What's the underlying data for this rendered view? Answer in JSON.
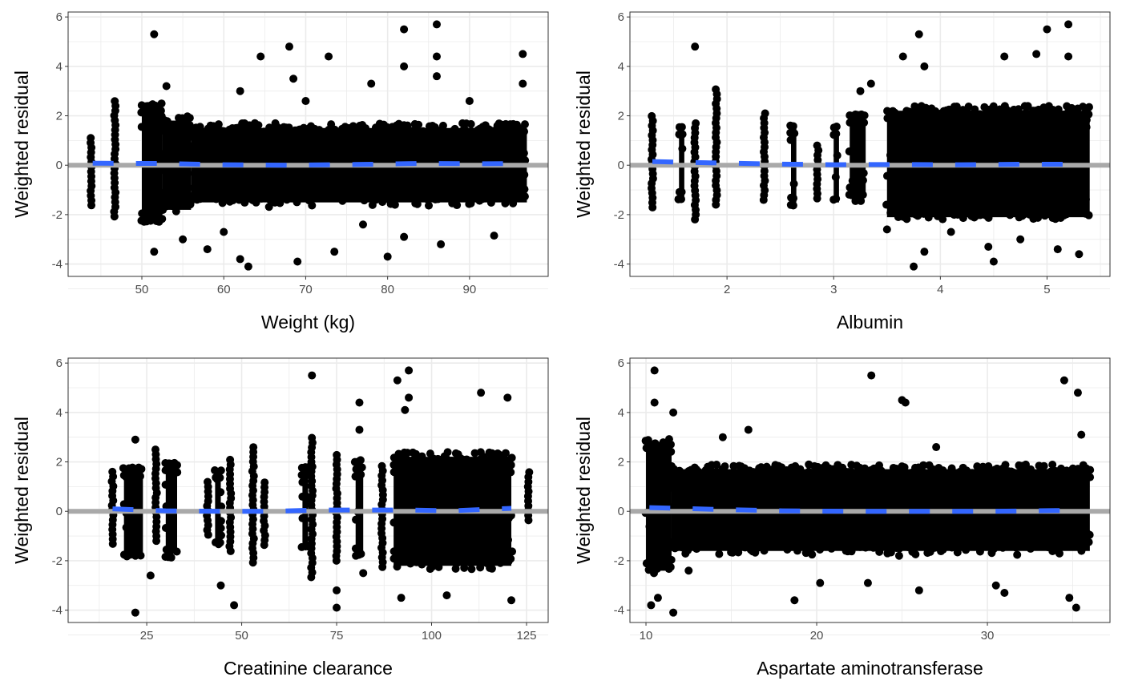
{
  "colors": {
    "points": "#000000",
    "smooth": "#3366FF",
    "reference_line": "#A9A9A9",
    "grid": "#EBEBEB",
    "border": "#333333",
    "tick_text": "#4D4D4D"
  },
  "chart_data": [
    {
      "type": "scatter",
      "xlabel": "Weight (kg)",
      "ylabel": "Weighted residual",
      "xlim": [
        41.0,
        99.6
      ],
      "ylim": [
        -4.5,
        6.2
      ],
      "xticks": [
        50,
        60,
        70,
        80,
        90
      ],
      "yticks": [
        -4,
        -2,
        0,
        2,
        4,
        6
      ],
      "grid": true,
      "reference_y": 0,
      "point_columns": [
        {
          "x": [
            43.8,
            43.8
          ],
          "y": [
            -1.9,
            1.1
          ]
        },
        {
          "x": [
            46.7,
            46.7
          ],
          "y": [
            -2.2,
            2.6
          ]
        },
        {
          "x": [
            50.0,
            52.5
          ],
          "y": [
            -2.4,
            2.5
          ]
        },
        {
          "x": [
            52.5,
            56.0
          ],
          "y": [
            -2.0,
            2.0
          ]
        },
        {
          "x": [
            56.0,
            97.0
          ],
          "y": [
            -1.7,
            1.7
          ]
        }
      ],
      "points": [
        [
          51.5,
          5.3
        ],
        [
          51.5,
          -3.5
        ],
        [
          58,
          -3.4
        ],
        [
          62,
          -3.8
        ],
        [
          63,
          -4.1
        ],
        [
          64.5,
          4.4
        ],
        [
          68,
          4.8
        ],
        [
          68.5,
          3.5
        ],
        [
          69,
          -3.9
        ],
        [
          72.8,
          4.4
        ],
        [
          73.5,
          -3.5
        ],
        [
          80,
          -3.7
        ],
        [
          82,
          5.5
        ],
        [
          82,
          4.0
        ],
        [
          82,
          -2.9
        ],
        [
          86,
          5.7
        ],
        [
          86,
          4.4
        ],
        [
          86,
          3.6
        ],
        [
          86.5,
          -3.2
        ],
        [
          93,
          -2.85
        ],
        [
          96.5,
          4.5
        ],
        [
          96.5,
          3.3
        ],
        [
          62,
          3.0
        ],
        [
          55,
          -3.0
        ],
        [
          70,
          2.6
        ],
        [
          78,
          3.3
        ],
        [
          90,
          2.6
        ],
        [
          53,
          3.2
        ],
        [
          60,
          -2.7
        ],
        [
          77,
          -2.4
        ]
      ],
      "smooth": [
        [
          44,
          0.08
        ],
        [
          52,
          0.07
        ],
        [
          60,
          0.02
        ],
        [
          68,
          0.0
        ],
        [
          76,
          0.03
        ],
        [
          84,
          0.07
        ],
        [
          92,
          0.06
        ],
        [
          96,
          0.07
        ]
      ]
    },
    {
      "type": "scatter",
      "xlabel": "Albumin",
      "ylabel": "Weighted residual",
      "xlim": [
        1.09,
        5.59
      ],
      "ylim": [
        -4.5,
        6.2
      ],
      "xticks": [
        2,
        3,
        4,
        5
      ],
      "yticks": [
        -4,
        -2,
        0,
        2,
        4,
        6
      ],
      "grid": true,
      "reference_y": 0,
      "point_columns": [
        {
          "x": [
            1.3,
            1.3
          ],
          "y": [
            -1.9,
            2.1
          ]
        },
        {
          "x": [
            1.55,
            1.6
          ],
          "y": [
            -1.5,
            1.6
          ]
        },
        {
          "x": [
            1.7,
            1.7
          ],
          "y": [
            -2.5,
            1.8
          ]
        },
        {
          "x": [
            1.9,
            1.9
          ],
          "y": [
            -1.8,
            3.2
          ]
        },
        {
          "x": [
            2.35,
            2.35
          ],
          "y": [
            -1.6,
            2.1
          ]
        },
        {
          "x": [
            2.6,
            2.65
          ],
          "y": [
            -1.7,
            1.7
          ]
        },
        {
          "x": [
            2.85,
            2.85
          ],
          "y": [
            -1.5,
            0.9
          ]
        },
        {
          "x": [
            3.0,
            3.05
          ],
          "y": [
            -1.7,
            1.6
          ]
        },
        {
          "x": [
            3.15,
            3.3
          ],
          "y": [
            -1.5,
            2.1
          ]
        },
        {
          "x": [
            3.5,
            5.4
          ],
          "y": [
            -2.3,
            2.4
          ]
        }
      ],
      "points": [
        [
          1.7,
          4.8
        ],
        [
          3.8,
          5.3
        ],
        [
          3.85,
          4.0
        ],
        [
          3.65,
          4.4
        ],
        [
          3.75,
          -4.1
        ],
        [
          4.5,
          -3.9
        ],
        [
          4.45,
          -3.3
        ],
        [
          4.6,
          4.4
        ],
        [
          4.9,
          4.5
        ],
        [
          5.0,
          5.5
        ],
        [
          5.2,
          5.7
        ],
        [
          5.2,
          4.4
        ],
        [
          5.3,
          -3.6
        ],
        [
          3.85,
          -3.5
        ],
        [
          4.1,
          -2.7
        ],
        [
          5.1,
          -3.4
        ],
        [
          3.25,
          3.0
        ],
        [
          3.35,
          3.3
        ],
        [
          3.5,
          -2.6
        ],
        [
          4.75,
          -3.0
        ]
      ],
      "smooth": [
        [
          1.3,
          0.15
        ],
        [
          1.8,
          0.1
        ],
        [
          2.4,
          0.05
        ],
        [
          3.0,
          0.02
        ],
        [
          3.6,
          0.03
        ],
        [
          4.2,
          0.02
        ],
        [
          4.8,
          0.04
        ],
        [
          5.2,
          0.04
        ]
      ]
    },
    {
      "type": "scatter",
      "xlabel": "Creatinine clearance",
      "ylabel": "Weighted residual",
      "xlim": [
        4.3,
        130.7
      ],
      "ylim": [
        -4.5,
        6.2
      ],
      "xticks": [
        25,
        50,
        75,
        100,
        125
      ],
      "yticks": [
        -4,
        -2,
        0,
        2,
        4,
        6
      ],
      "grid": true,
      "reference_y": 0,
      "point_columns": [
        {
          "x": [
            16,
            16
          ],
          "y": [
            -1.4,
            1.7
          ]
        },
        {
          "x": [
            19,
            24
          ],
          "y": [
            -2.0,
            1.8
          ]
        },
        {
          "x": [
            27.5,
            27.5
          ],
          "y": [
            -1.3,
            2.5
          ]
        },
        {
          "x": [
            30,
            33
          ],
          "y": [
            -1.9,
            2.0
          ]
        },
        {
          "x": [
            41,
            41
          ],
          "y": [
            -1.2,
            1.3
          ]
        },
        {
          "x": [
            43,
            44.5
          ],
          "y": [
            -1.6,
            1.7
          ]
        },
        {
          "x": [
            47,
            47
          ],
          "y": [
            -1.8,
            2.1
          ]
        },
        {
          "x": [
            53,
            53
          ],
          "y": [
            -2.2,
            2.6
          ]
        },
        {
          "x": [
            56,
            56
          ],
          "y": [
            -1.5,
            1.2
          ]
        },
        {
          "x": [
            66,
            67.5
          ],
          "y": [
            -1.7,
            1.8
          ]
        },
        {
          "x": [
            68.5,
            68.5
          ],
          "y": [
            -2.8,
            3.1
          ]
        },
        {
          "x": [
            75,
            75
          ],
          "y": [
            -2.2,
            2.4
          ]
        },
        {
          "x": [
            80,
            82
          ],
          "y": [
            -2.0,
            2.1
          ]
        },
        {
          "x": [
            87,
            87
          ],
          "y": [
            -2.4,
            1.9
          ]
        },
        {
          "x": [
            90,
            121
          ],
          "y": [
            -2.4,
            2.4
          ]
        },
        {
          "x": [
            125.5,
            125.5
          ],
          "y": [
            -0.6,
            1.7
          ]
        }
      ],
      "points": [
        [
          22,
          -4.1
        ],
        [
          26,
          -2.6
        ],
        [
          44.5,
          -3.0
        ],
        [
          48,
          -3.8
        ],
        [
          68.5,
          5.5
        ],
        [
          81,
          4.4
        ],
        [
          75,
          -3.9
        ],
        [
          75,
          -3.2
        ],
        [
          91,
          5.3
        ],
        [
          94,
          5.7
        ],
        [
          94,
          4.6
        ],
        [
          93,
          4.1
        ],
        [
          113,
          4.8
        ],
        [
          120,
          4.6
        ],
        [
          121,
          -3.6
        ],
        [
          104,
          -3.4
        ],
        [
          92,
          -3.5
        ],
        [
          22,
          2.9
        ],
        [
          81,
          3.3
        ],
        [
          82,
          -2.5
        ]
      ],
      "smooth": [
        [
          16,
          0.1
        ],
        [
          30,
          0.02
        ],
        [
          45,
          0.0
        ],
        [
          58,
          0.0
        ],
        [
          70,
          0.05
        ],
        [
          85,
          0.05
        ],
        [
          95,
          0.05
        ],
        [
          105,
          0.02
        ],
        [
          121,
          0.12
        ]
      ]
    },
    {
      "type": "scatter",
      "xlabel": "Aspartate aminotransferase",
      "ylabel": "Weighted residual",
      "xlim": [
        9.06,
        37.18
      ],
      "ylim": [
        -4.5,
        6.2
      ],
      "xticks": [
        10,
        20,
        30
      ],
      "yticks": [
        -4,
        -2,
        0,
        2,
        4,
        6
      ],
      "grid": true,
      "reference_y": 0,
      "point_columns": [
        {
          "x": [
            10.0,
            11.5
          ],
          "y": [
            -2.6,
            3.0
          ]
        },
        {
          "x": [
            11.5,
            36.0
          ],
          "y": [
            -1.8,
            1.9
          ]
        }
      ],
      "points": [
        [
          10.5,
          5.7
        ],
        [
          10.5,
          4.4
        ],
        [
          10.3,
          -3.8
        ],
        [
          10.7,
          -3.5
        ],
        [
          11.6,
          -4.1
        ],
        [
          11.6,
          4.0
        ],
        [
          18.7,
          -3.6
        ],
        [
          23.2,
          5.5
        ],
        [
          25,
          4.5
        ],
        [
          25.2,
          4.4
        ],
        [
          26,
          -3.2
        ],
        [
          30.5,
          -3.0
        ],
        [
          31,
          -3.3
        ],
        [
          34.5,
          5.3
        ],
        [
          35.3,
          4.8
        ],
        [
          34.8,
          -3.5
        ],
        [
          35.2,
          -3.9
        ],
        [
          35.5,
          3.1
        ],
        [
          16,
          3.3
        ],
        [
          14.5,
          3.0
        ],
        [
          12.5,
          -2.4
        ],
        [
          20.2,
          -2.9
        ],
        [
          23,
          -2.9
        ],
        [
          27,
          2.6
        ]
      ],
      "smooth": [
        [
          10.2,
          0.15
        ],
        [
          14,
          0.08
        ],
        [
          18,
          0.02
        ],
        [
          22,
          0.0
        ],
        [
          26,
          0.0
        ],
        [
          30,
          0.0
        ],
        [
          34,
          0.03
        ],
        [
          35.5,
          0.05
        ]
      ]
    }
  ]
}
